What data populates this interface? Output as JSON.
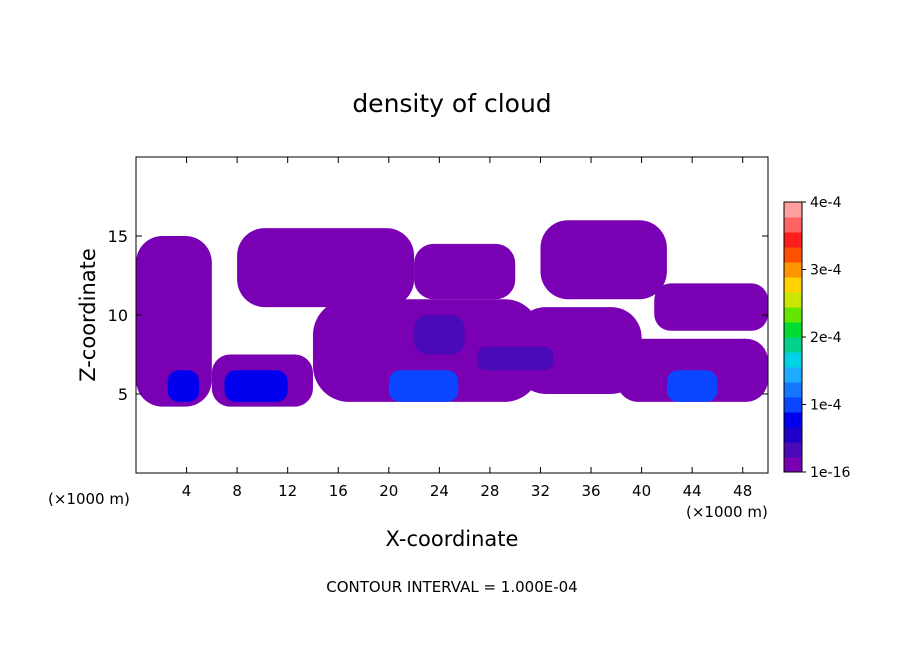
{
  "chart_data": {
    "type": "heatmap",
    "title": "density of cloud",
    "xlabel": "X-coordinate",
    "ylabel": "Z-coordinate",
    "x_unit_left": "(×1000 m)",
    "x_unit_right": "(×1000 m)",
    "xlim": [
      0,
      50
    ],
    "ylim": [
      0,
      20
    ],
    "xticks": [
      4,
      8,
      12,
      16,
      20,
      24,
      28,
      32,
      36,
      40,
      44,
      48
    ],
    "yticks": [
      5,
      10,
      15
    ],
    "footnote": "CONTOUR INTERVAL = 1.000E-04",
    "colorbar": {
      "min": 1e-16,
      "max": 0.0004,
      "labels": [
        "4e-4",
        "3e-4",
        "2e-4",
        "1e-4",
        "1e-16"
      ],
      "label_values": [
        0.0004,
        0.0003,
        0.0002,
        0.0001,
        0
      ],
      "colors": [
        "#7a00b4",
        "#4b0ab8",
        "#1e00c8",
        "#0000ee",
        "#0a46ff",
        "#1478ff",
        "#1eaaff",
        "#00d2e6",
        "#00d28c",
        "#00dc32",
        "#64e600",
        "#c8e600",
        "#ffd200",
        "#ff9600",
        "#ff5000",
        "#ff1e1e",
        "#ff6464",
        "#ffa0a0"
      ]
    },
    "regions": [
      {
        "x0": 0,
        "x1": 6,
        "z0": 4.2,
        "z1": 15,
        "value": 1e-05
      },
      {
        "x0": 6,
        "x1": 14,
        "z0": 4.2,
        "z1": 7.5,
        "value": 1e-05
      },
      {
        "x0": 8,
        "x1": 22,
        "z0": 10.5,
        "z1": 15.5,
        "value": 1e-05
      },
      {
        "x0": 14,
        "x1": 32,
        "z0": 4.5,
        "z1": 11,
        "value": 1e-05
      },
      {
        "x0": 22,
        "x1": 30,
        "z0": 11,
        "z1": 14.5,
        "value": 1e-05
      },
      {
        "x0": 30,
        "x1": 40,
        "z0": 5,
        "z1": 10.5,
        "value": 1e-05
      },
      {
        "x0": 32,
        "x1": 42,
        "z0": 11,
        "z1": 16,
        "value": 1e-05
      },
      {
        "x0": 38,
        "x1": 50,
        "z0": 4.5,
        "z1": 8.5,
        "value": 1e-05
      },
      {
        "x0": 41,
        "x1": 50,
        "z0": 9,
        "z1": 12,
        "value": 1e-05
      },
      {
        "x0": 2.5,
        "x1": 5,
        "z0": 4.5,
        "z1": 6.5,
        "value": 8e-05
      },
      {
        "x0": 7,
        "x1": 12,
        "z0": 4.5,
        "z1": 6.5,
        "value": 8e-05
      },
      {
        "x0": 20,
        "x1": 25.5,
        "z0": 4.5,
        "z1": 6.5,
        "value": 9e-05
      },
      {
        "x0": 42,
        "x1": 46,
        "z0": 4.5,
        "z1": 6.5,
        "value": 9e-05
      },
      {
        "x0": 22,
        "x1": 26,
        "z0": 7.5,
        "z1": 10,
        "value": 3e-05
      },
      {
        "x0": 27,
        "x1": 33,
        "z0": 6.5,
        "z1": 8,
        "value": 3e-05
      }
    ]
  }
}
